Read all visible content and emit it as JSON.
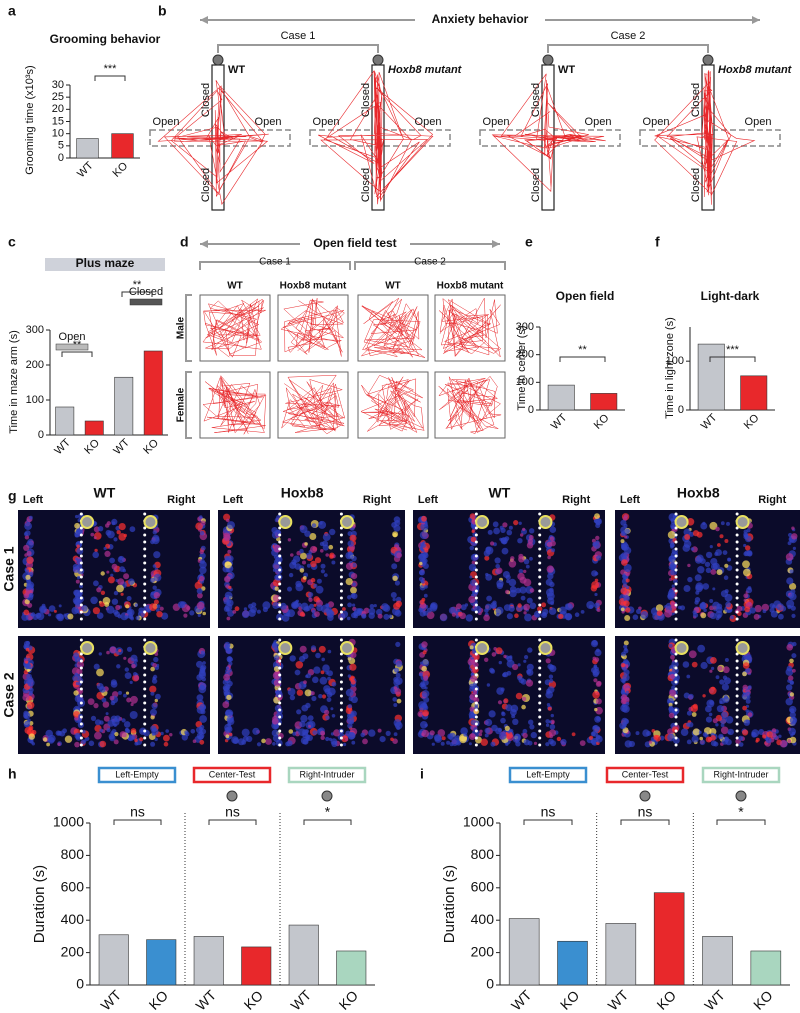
{
  "figure": {
    "panel_labels": [
      "a",
      "b",
      "c",
      "d",
      "e",
      "f",
      "g",
      "h",
      "i"
    ],
    "anxiety": {
      "title": "Anxiety behavior",
      "cases": [
        "Case 1",
        "Case 2"
      ],
      "groups": [
        "WT",
        "Hoxb8 mutant"
      ],
      "arm_open": "Open",
      "arm_closed": "Closed"
    },
    "open_field": {
      "title": "Open field test",
      "cases": [
        "Case 1",
        "Case 2"
      ],
      "groups": [
        "WT",
        "Hoxb8 mutant"
      ],
      "rows": [
        "Male",
        "Female"
      ]
    },
    "social": {
      "groups": [
        "WT",
        "Hoxb8"
      ],
      "sides": [
        "Left",
        "Right"
      ],
      "cases": [
        "Case 1",
        "Case 2"
      ]
    }
  },
  "chart_data": [
    {
      "type": "bar",
      "title": "Grooming behavior",
      "ylabel": "Grooming time (x10³s)",
      "categories": [
        "WT",
        "KO"
      ],
      "values": [
        8,
        10
      ],
      "colors": [
        "#c3c6cc",
        "#e8282b"
      ],
      "ylim": [
        0,
        30
      ],
      "yticks": [
        0,
        5,
        10,
        15,
        20,
        25,
        30
      ],
      "annotations": [
        "***"
      ]
    },
    {
      "type": "bar",
      "title": "Plus maze",
      "ylabel": "Time in maze arm (s)",
      "categories": [
        "WT",
        "KO",
        "WT",
        "KO"
      ],
      "values": [
        80,
        40,
        165,
        240
      ],
      "colors": [
        "#c3c6cc",
        "#e8282b",
        "#c3c6cc",
        "#e8282b"
      ],
      "ylim": [
        0,
        300
      ],
      "yticks": [
        0,
        100,
        200,
        300
      ],
      "annotations": [
        "**",
        "**"
      ],
      "group_labels": [
        "Open",
        "Closed"
      ]
    },
    {
      "type": "bar",
      "title": "Open field",
      "ylabel": "Time in center (s)",
      "categories": [
        "WT",
        "KO"
      ],
      "values": [
        90,
        60
      ],
      "colors": [
        "#c3c6cc",
        "#e8282b"
      ],
      "ylim": [
        0,
        300
      ],
      "yticks": [
        0,
        100,
        200,
        300
      ],
      "annotations": [
        "**"
      ]
    },
    {
      "type": "bar",
      "title": "Light-dark",
      "ylabel": "Time in light zone (s)",
      "categories": [
        "WT",
        "KO"
      ],
      "values": [
        135,
        70
      ],
      "colors": [
        "#c3c6cc",
        "#e8282b"
      ],
      "ylim": [
        0,
        170
      ],
      "yticks": [
        0,
        100
      ],
      "annotations": [
        "***"
      ]
    },
    {
      "type": "bar",
      "ylabel": "Duration (s)",
      "categories": [
        "WT",
        "KO",
        "WT",
        "KO",
        "WT",
        "KO"
      ],
      "values": [
        310,
        280,
        300,
        235,
        370,
        210
      ],
      "colors": [
        "#c3c6cc",
        "#3a8fd0",
        "#c3c6cc",
        "#e8282b",
        "#c3c6cc",
        "#a9d6bf"
      ],
      "ylim": [
        0,
        1000
      ],
      "yticks": [
        0,
        200,
        400,
        600,
        800,
        1000
      ],
      "annotations": [
        "ns",
        "ns",
        "*"
      ],
      "group_labels": [
        "Left-Empty",
        "Center-Test",
        "Right-Intruder"
      ]
    },
    {
      "type": "bar",
      "ylabel": "Duration (s)",
      "categories": [
        "WT",
        "KO",
        "WT",
        "KO",
        "WT",
        "KO"
      ],
      "values": [
        410,
        270,
        380,
        570,
        300,
        210
      ],
      "colors": [
        "#c3c6cc",
        "#3a8fd0",
        "#c3c6cc",
        "#e8282b",
        "#c3c6cc",
        "#a9d6bf"
      ],
      "ylim": [
        0,
        1000
      ],
      "yticks": [
        0,
        200,
        400,
        600,
        800,
        1000
      ],
      "annotations": [
        "ns",
        "ns",
        "*"
      ],
      "group_labels": [
        "Left-Empty",
        "Center-Test",
        "Right-Intruder"
      ]
    }
  ]
}
